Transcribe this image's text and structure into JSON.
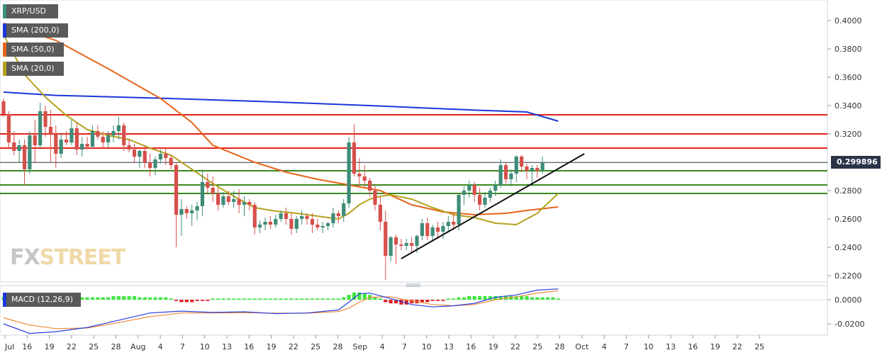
{
  "legends": [
    {
      "label": "XRP/USD",
      "color": "#3a8f7a"
    },
    {
      "label": "SMA (200,0)",
      "color": "#1a37d8"
    },
    {
      "label": "SMA (50,0)",
      "color": "#e6641a"
    },
    {
      "label": "SMA (20,0)",
      "color": "#b5a21e"
    }
  ],
  "macd_legend": {
    "label": "MACD (12,26,9)",
    "color": "#1a37d8"
  },
  "watermark": {
    "part1": "FX",
    "part2": "STREET"
  },
  "last_price": "0.299896",
  "colors": {
    "bull": "#3e8c78",
    "bear": "#d6504a",
    "sma200": "#1a37d8",
    "sma50": "#e6641a",
    "sma20": "#b5a21e",
    "resistance": "#e3221b",
    "support": "#3a8a1e",
    "trend": "#111111",
    "hist_up": "#3fe73f",
    "hist_down": "#e02020",
    "macd": "#2a3fe0",
    "signal": "#ee8a3a"
  },
  "chart_data": {
    "type": "candlestick",
    "x_ticks": [
      "Jul",
      "16",
      "19",
      "22",
      "25",
      "28",
      "Aug",
      "4",
      "7",
      "10",
      "13",
      "16",
      "19",
      "22",
      "25",
      "28",
      "Sep",
      "4",
      "7",
      "10",
      "13",
      "16",
      "19",
      "22",
      "25",
      "28",
      "Oct",
      "4",
      "7",
      "10",
      "13",
      "16",
      "19",
      "22",
      "25"
    ],
    "y_ticks": [
      "0.4000",
      "0.3800",
      "0.3600",
      "0.3400",
      "0.3200",
      "0.2800",
      "0.2600",
      "0.2400",
      "0.2200"
    ],
    "ylim": [
      0.21,
      0.41
    ],
    "candles": [
      [
        0.343,
        0.345,
        0.332,
        0.334
      ],
      [
        0.334,
        0.336,
        0.31,
        0.314
      ],
      [
        0.314,
        0.322,
        0.305,
        0.308
      ],
      [
        0.308,
        0.316,
        0.3,
        0.312
      ],
      [
        0.312,
        0.316,
        0.284,
        0.295
      ],
      [
        0.295,
        0.322,
        0.292,
        0.319
      ],
      [
        0.319,
        0.33,
        0.3,
        0.312
      ],
      [
        0.312,
        0.342,
        0.31,
        0.336
      ],
      [
        0.336,
        0.34,
        0.318,
        0.325
      ],
      [
        0.325,
        0.337,
        0.3,
        0.32
      ],
      [
        0.32,
        0.326,
        0.296,
        0.306
      ],
      [
        0.306,
        0.32,
        0.303,
        0.316
      ],
      [
        0.316,
        0.322,
        0.312,
        0.314
      ],
      [
        0.314,
        0.33,
        0.312,
        0.324
      ],
      [
        0.324,
        0.328,
        0.305,
        0.309
      ],
      [
        0.309,
        0.318,
        0.304,
        0.313
      ],
      [
        0.313,
        0.318,
        0.309,
        0.311
      ],
      [
        0.311,
        0.326,
        0.31,
        0.322
      ],
      [
        0.322,
        0.326,
        0.316,
        0.318
      ],
      [
        0.318,
        0.322,
        0.31,
        0.314
      ],
      [
        0.314,
        0.322,
        0.31,
        0.319
      ],
      [
        0.319,
        0.326,
        0.314,
        0.322
      ],
      [
        0.322,
        0.332,
        0.316,
        0.326
      ],
      [
        0.326,
        0.328,
        0.308,
        0.312
      ],
      [
        0.312,
        0.316,
        0.307,
        0.309
      ],
      [
        0.309,
        0.313,
        0.3,
        0.304
      ],
      [
        0.304,
        0.309,
        0.296,
        0.308
      ],
      [
        0.308,
        0.312,
        0.296,
        0.3
      ],
      [
        0.3,
        0.306,
        0.29,
        0.296
      ],
      [
        0.296,
        0.304,
        0.291,
        0.302
      ],
      [
        0.302,
        0.309,
        0.299,
        0.306
      ],
      [
        0.306,
        0.31,
        0.298,
        0.303
      ],
      [
        0.303,
        0.305,
        0.295,
        0.298
      ],
      [
        0.298,
        0.3,
        0.24,
        0.263
      ],
      [
        0.263,
        0.274,
        0.248,
        0.267
      ],
      [
        0.267,
        0.269,
        0.26,
        0.264
      ],
      [
        0.264,
        0.27,
        0.255,
        0.266
      ],
      [
        0.266,
        0.272,
        0.259,
        0.269
      ],
      [
        0.269,
        0.295,
        0.262,
        0.286
      ],
      [
        0.286,
        0.292,
        0.278,
        0.282
      ],
      [
        0.282,
        0.29,
        0.272,
        0.278
      ],
      [
        0.278,
        0.282,
        0.266,
        0.27
      ],
      [
        0.27,
        0.279,
        0.268,
        0.276
      ],
      [
        0.276,
        0.28,
        0.27,
        0.272
      ],
      [
        0.272,
        0.28,
        0.268,
        0.274
      ],
      [
        0.274,
        0.281,
        0.264,
        0.27
      ],
      [
        0.27,
        0.276,
        0.262,
        0.272
      ],
      [
        0.272,
        0.274,
        0.266,
        0.27
      ],
      [
        0.27,
        0.272,
        0.249,
        0.254
      ],
      [
        0.254,
        0.259,
        0.25,
        0.256
      ],
      [
        0.256,
        0.261,
        0.252,
        0.258
      ],
      [
        0.258,
        0.262,
        0.253,
        0.256
      ],
      [
        0.256,
        0.263,
        0.254,
        0.26
      ],
      [
        0.26,
        0.266,
        0.258,
        0.264
      ],
      [
        0.264,
        0.268,
        0.256,
        0.26
      ],
      [
        0.26,
        0.264,
        0.249,
        0.253
      ],
      [
        0.253,
        0.262,
        0.25,
        0.26
      ],
      [
        0.26,
        0.266,
        0.256,
        0.262
      ],
      [
        0.262,
        0.264,
        0.256,
        0.26
      ],
      [
        0.26,
        0.264,
        0.25,
        0.256
      ],
      [
        0.256,
        0.26,
        0.252,
        0.254
      ],
      [
        0.254,
        0.258,
        0.25,
        0.255
      ],
      [
        0.255,
        0.258,
        0.252,
        0.257
      ],
      [
        0.257,
        0.268,
        0.254,
        0.264
      ],
      [
        0.264,
        0.266,
        0.257,
        0.262
      ],
      [
        0.262,
        0.274,
        0.258,
        0.271
      ],
      [
        0.271,
        0.318,
        0.268,
        0.314
      ],
      [
        0.314,
        0.327,
        0.29,
        0.292
      ],
      [
        0.292,
        0.303,
        0.283,
        0.29
      ],
      [
        0.29,
        0.298,
        0.282,
        0.287
      ],
      [
        0.287,
        0.289,
        0.276,
        0.28
      ],
      [
        0.28,
        0.284,
        0.266,
        0.27
      ],
      [
        0.27,
        0.276,
        0.252,
        0.258
      ],
      [
        0.258,
        0.266,
        0.217,
        0.234
      ],
      [
        0.234,
        0.248,
        0.23,
        0.247
      ],
      [
        0.247,
        0.249,
        0.228,
        0.242
      ],
      [
        0.242,
        0.246,
        0.238,
        0.241
      ],
      [
        0.241,
        0.246,
        0.238,
        0.243
      ],
      [
        0.243,
        0.247,
        0.236,
        0.241
      ],
      [
        0.241,
        0.249,
        0.236,
        0.248
      ],
      [
        0.248,
        0.26,
        0.245,
        0.257
      ],
      [
        0.257,
        0.261,
        0.245,
        0.248
      ],
      [
        0.248,
        0.256,
        0.244,
        0.254
      ],
      [
        0.254,
        0.258,
        0.246,
        0.251
      ],
      [
        0.251,
        0.258,
        0.246,
        0.255
      ],
      [
        0.255,
        0.262,
        0.251,
        0.258
      ],
      [
        0.258,
        0.264,
        0.252,
        0.256
      ],
      [
        0.256,
        0.278,
        0.252,
        0.277
      ],
      [
        0.277,
        0.283,
        0.27,
        0.28
      ],
      [
        0.28,
        0.287,
        0.275,
        0.284
      ],
      [
        0.284,
        0.286,
        0.272,
        0.277
      ],
      [
        0.277,
        0.282,
        0.266,
        0.27
      ],
      [
        0.27,
        0.279,
        0.268,
        0.275
      ],
      [
        0.275,
        0.282,
        0.272,
        0.28
      ],
      [
        0.28,
        0.287,
        0.276,
        0.284
      ],
      [
        0.284,
        0.302,
        0.282,
        0.298
      ],
      [
        0.298,
        0.3,
        0.285,
        0.288
      ],
      [
        0.288,
        0.295,
        0.283,
        0.292
      ],
      [
        0.292,
        0.305,
        0.286,
        0.304
      ],
      [
        0.304,
        0.305,
        0.293,
        0.297
      ],
      [
        0.297,
        0.299,
        0.288,
        0.294
      ],
      [
        0.294,
        0.298,
        0.283,
        0.296
      ],
      [
        0.296,
        0.298,
        0.289,
        0.294
      ],
      [
        0.294,
        0.304,
        0.292,
        0.3
      ]
    ],
    "sma200": [
      [
        0,
        0.3495
      ],
      [
        10,
        0.3472
      ],
      [
        30,
        0.3452
      ],
      [
        50,
        0.3428
      ],
      [
        70,
        0.34
      ],
      [
        90,
        0.3368
      ],
      [
        100,
        0.3355
      ],
      [
        106,
        0.329
      ]
    ],
    "sma50": [
      [
        0,
        0.398
      ],
      [
        10,
        0.386
      ],
      [
        20,
        0.366
      ],
      [
        30,
        0.345
      ],
      [
        36,
        0.328
      ],
      [
        40,
        0.312
      ],
      [
        48,
        0.3
      ],
      [
        54,
        0.293
      ],
      [
        60,
        0.288
      ],
      [
        66,
        0.284
      ],
      [
        72,
        0.28
      ],
      [
        78,
        0.27
      ],
      [
        84,
        0.265
      ],
      [
        90,
        0.263
      ],
      [
        96,
        0.264
      ],
      [
        100,
        0.266
      ],
      [
        106,
        0.2685
      ]
    ],
    "sma20": [
      [
        0,
        0.39
      ],
      [
        4,
        0.362
      ],
      [
        8,
        0.346
      ],
      [
        12,
        0.333
      ],
      [
        16,
        0.323
      ],
      [
        20,
        0.319
      ],
      [
        24,
        0.316
      ],
      [
        28,
        0.31
      ],
      [
        32,
        0.305
      ],
      [
        36,
        0.295
      ],
      [
        40,
        0.285
      ],
      [
        44,
        0.276
      ],
      [
        48,
        0.268
      ],
      [
        52,
        0.2655
      ],
      [
        56,
        0.264
      ],
      [
        60,
        0.262
      ],
      [
        64,
        0.26
      ],
      [
        66,
        0.264
      ],
      [
        68,
        0.27
      ],
      [
        70,
        0.274
      ],
      [
        72,
        0.276
      ],
      [
        74,
        0.277
      ],
      [
        78,
        0.274
      ],
      [
        82,
        0.268
      ],
      [
        86,
        0.263
      ],
      [
        90,
        0.261
      ],
      [
        94,
        0.257
      ],
      [
        98,
        0.256
      ],
      [
        102,
        0.264
      ],
      [
        106,
        0.278
      ]
    ],
    "horizontal_lines": {
      "resistance": [
        0.3335,
        0.32,
        0.31
      ],
      "support": [
        0.294,
        0.284,
        0.278
      ],
      "last": 0.2999
    },
    "trendline": [
      [
        76,
        0.232
      ],
      [
        111,
        0.306
      ]
    ],
    "macd": {
      "y_ticks": [
        "0.0000",
        "-0.0200"
      ],
      "ylim": [
        -0.03,
        0.008
      ],
      "macd_line": [
        [
          0,
          -0.02
        ],
        [
          5,
          -0.028
        ],
        [
          10,
          -0.0265
        ],
        [
          16,
          -0.023
        ],
        [
          22,
          -0.017
        ],
        [
          28,
          -0.011
        ],
        [
          34,
          -0.0095
        ],
        [
          40,
          -0.0105
        ],
        [
          46,
          -0.01
        ],
        [
          52,
          -0.0115
        ],
        [
          58,
          -0.011
        ],
        [
          64,
          -0.0085
        ],
        [
          66,
          -0.002
        ],
        [
          68,
          0.005
        ],
        [
          70,
          0.0055
        ],
        [
          74,
          0.001
        ],
        [
          78,
          -0.004
        ],
        [
          82,
          -0.006
        ],
        [
          86,
          -0.005
        ],
        [
          90,
          -0.003
        ],
        [
          94,
          0.002
        ],
        [
          98,
          0.004
        ],
        [
          102,
          0.008
        ],
        [
          106,
          0.009
        ]
      ],
      "signal_line": [
        [
          0,
          -0.015
        ],
        [
          5,
          -0.021
        ],
        [
          10,
          -0.024
        ],
        [
          16,
          -0.0235
        ],
        [
          22,
          -0.019
        ],
        [
          28,
          -0.014
        ],
        [
          34,
          -0.011
        ],
        [
          40,
          -0.011
        ],
        [
          46,
          -0.0108
        ],
        [
          52,
          -0.0112
        ],
        [
          58,
          -0.0112
        ],
        [
          64,
          -0.0098
        ],
        [
          66,
          -0.007
        ],
        [
          68,
          -0.002
        ],
        [
          70,
          0.002
        ],
        [
          74,
          0.0025
        ],
        [
          78,
          -0.001
        ],
        [
          82,
          -0.004
        ],
        [
          86,
          -0.005
        ],
        [
          90,
          -0.004
        ],
        [
          94,
          0.0
        ],
        [
          98,
          0.0025
        ],
        [
          102,
          0.0055
        ],
        [
          106,
          0.0075
        ]
      ],
      "histogram": [
        0.002,
        0.002,
        0.002,
        0.002,
        0.002,
        0.002,
        0.002,
        0.002,
        0.002,
        0.002,
        0.002,
        0.002,
        0.002,
        0.002,
        0.002,
        0.002,
        0.002,
        0.002,
        0.002,
        0.002,
        0.002,
        0.003,
        0.003,
        0.003,
        0.003,
        0.003,
        0.002,
        0.002,
        0.002,
        0.002,
        0.002,
        0.002,
        0.001,
        -0.001,
        -0.002,
        -0.002,
        -0.002,
        -0.001,
        -0.001,
        -0.001,
        0.001,
        0.001,
        0.001,
        0.001,
        0.001,
        0.001,
        0.001,
        0.001,
        0.001,
        0.001,
        0.001,
        0.001,
        0.001,
        0.001,
        0.001,
        0.001,
        0.001,
        0.001,
        0.001,
        0.001,
        0.001,
        0.001,
        0.001,
        0.001,
        0.001,
        0.002,
        0.004,
        0.006,
        0.006,
        0.005,
        0.004,
        0.002,
        0.001,
        -0.002,
        -0.003,
        -0.003,
        -0.004,
        -0.004,
        -0.003,
        -0.003,
        -0.002,
        -0.002,
        -0.001,
        -0.001,
        -0.001,
        0.001,
        0.001,
        0.002,
        0.002,
        0.003,
        0.003,
        0.003,
        0.003,
        0.003,
        0.003,
        0.003,
        0.003,
        0.003,
        0.003,
        0.003,
        0.003,
        0.002,
        0.002,
        0.002,
        0.002,
        0.002,
        0.001
      ]
    }
  }
}
